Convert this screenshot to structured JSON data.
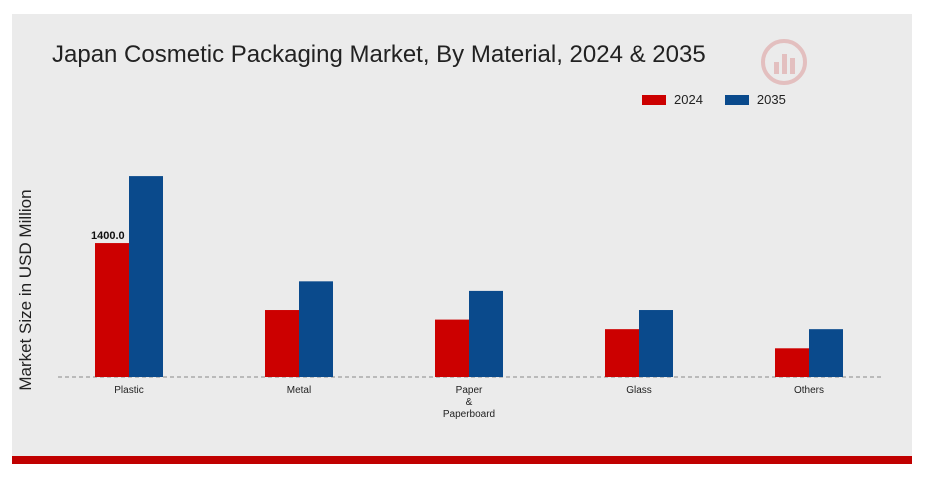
{
  "chart_data": {
    "type": "bar",
    "title": "Japan Cosmetic Packaging Market, By Material, 2024 & 2035",
    "xlabel": "",
    "ylabel": "Market Size in USD Million",
    "categories": [
      "Plastic",
      "Metal",
      "Paper & Paperboard",
      "Glass",
      "Others"
    ],
    "category_lines": [
      [
        "Plastic"
      ],
      [
        "Metal"
      ],
      [
        "Paper",
        "&",
        "Paperboard"
      ],
      [
        "Glass"
      ],
      [
        "Others"
      ]
    ],
    "series": [
      {
        "name": "2024",
        "color": "#cc0000",
        "values": [
          1400.0,
          700,
          600,
          500,
          300
        ]
      },
      {
        "name": "2035",
        "color": "#0a4a8c",
        "values": [
          2100,
          1000,
          900,
          700,
          500
        ]
      }
    ],
    "data_labels": [
      {
        "series": 0,
        "index": 0,
        "text": "1400.0"
      }
    ],
    "ylim": [
      0,
      3000
    ],
    "grid": false,
    "baseline": "dashed",
    "legend_position": "top-right"
  },
  "colors": {
    "panel": "#ebebeb",
    "accent_bar": "#c00000"
  },
  "logo_icon": "market-research-logo-icon"
}
